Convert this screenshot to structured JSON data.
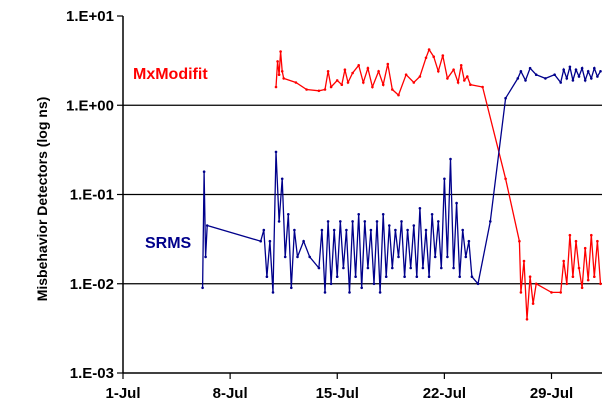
{
  "chart_data": {
    "type": "line",
    "ylabel": "Misbehavior Detectors (log ns)",
    "xlabel": "",
    "y_scale": "log",
    "ylim": [
      0.001,
      10
    ],
    "y_ticks": [
      {
        "value": 10,
        "label": "1.E+01"
      },
      {
        "value": 1,
        "label": "1.E+00"
      },
      {
        "value": 0.1,
        "label": "1.E-01"
      },
      {
        "value": 0.01,
        "label": "1.E-02"
      },
      {
        "value": 0.001,
        "label": "1.E-03"
      }
    ],
    "xlim": [
      1,
      32.3
    ],
    "x_unit": "day of July",
    "x_ticks": [
      {
        "value": 1,
        "label": "1-Jul"
      },
      {
        "value": 8,
        "label": "8-Jul"
      },
      {
        "value": 15,
        "label": "15-Jul"
      },
      {
        "value": 22,
        "label": "22-Jul"
      },
      {
        "value": 29,
        "label": "29-Jul"
      }
    ],
    "gridlines": [
      1,
      0.1,
      0.01
    ],
    "series": [
      {
        "name": "MxModifit",
        "color": "#ff0000",
        "points": [
          [
            11,
            1.6
          ],
          [
            11.1,
            3.1
          ],
          [
            11.2,
            2.2
          ],
          [
            11.3,
            4.0
          ],
          [
            11.4,
            2.4
          ],
          [
            11.5,
            2.0
          ],
          [
            12.3,
            1.8
          ],
          [
            13,
            1.5
          ],
          [
            13.8,
            1.45
          ],
          [
            14.2,
            1.5
          ],
          [
            14.4,
            2.4
          ],
          [
            14.6,
            1.6
          ],
          [
            15,
            1.9
          ],
          [
            15.3,
            1.7
          ],
          [
            15.5,
            2.5
          ],
          [
            15.7,
            1.8
          ],
          [
            16,
            2.3
          ],
          [
            16.4,
            2.8
          ],
          [
            16.7,
            1.8
          ],
          [
            17,
            2.6
          ],
          [
            17.3,
            1.6
          ],
          [
            17.7,
            2.4
          ],
          [
            18,
            1.7
          ],
          [
            18.3,
            2.9
          ],
          [
            18.6,
            1.5
          ],
          [
            19,
            1.3
          ],
          [
            19.5,
            2.2
          ],
          [
            20,
            1.8
          ],
          [
            20.4,
            2.1
          ],
          [
            20.8,
            3.4
          ],
          [
            21,
            4.2
          ],
          [
            21.3,
            3.5
          ],
          [
            21.6,
            2.4
          ],
          [
            21.9,
            3.6
          ],
          [
            22.2,
            2.0
          ],
          [
            22.6,
            2.5
          ],
          [
            22.9,
            1.8
          ],
          [
            23.1,
            2.8
          ],
          [
            23.3,
            1.9
          ],
          [
            23.5,
            2.1
          ],
          [
            23.7,
            1.7
          ],
          [
            24.5,
            1.6
          ],
          [
            26,
            0.15
          ],
          [
            26.9,
            0.03
          ],
          [
            27,
            0.008
          ],
          [
            27.2,
            0.018
          ],
          [
            27.4,
            0.004
          ],
          [
            27.6,
            0.012
          ],
          [
            27.8,
            0.006
          ],
          [
            28,
            0.01
          ],
          [
            29,
            0.008
          ],
          [
            29.6,
            0.008
          ],
          [
            29.8,
            0.018
          ],
          [
            30,
            0.01
          ],
          [
            30.2,
            0.035
          ],
          [
            30.4,
            0.012
          ],
          [
            30.6,
            0.03
          ],
          [
            30.8,
            0.015
          ],
          [
            31,
            0.009
          ],
          [
            31.2,
            0.025
          ],
          [
            31.4,
            0.011
          ],
          [
            31.6,
            0.035
          ],
          [
            31.8,
            0.012
          ],
          [
            32,
            0.03
          ],
          [
            32.2,
            0.01
          ]
        ]
      },
      {
        "name": "SRMS",
        "color": "#00008b",
        "points": [
          [
            6.2,
            0.009
          ],
          [
            6.3,
            0.18
          ],
          [
            6.4,
            0.02
          ],
          [
            6.5,
            0.045
          ],
          [
            10,
            0.03
          ],
          [
            10.2,
            0.04
          ],
          [
            10.4,
            0.012
          ],
          [
            10.6,
            0.03
          ],
          [
            10.8,
            0.008
          ],
          [
            11.0,
            0.3
          ],
          [
            11.2,
            0.05
          ],
          [
            11.4,
            0.15
          ],
          [
            11.6,
            0.02
          ],
          [
            11.8,
            0.06
          ],
          [
            12,
            0.009
          ],
          [
            12.2,
            0.04
          ],
          [
            12.4,
            0.02
          ],
          [
            12.8,
            0.03
          ],
          [
            13.2,
            0.02
          ],
          [
            13.8,
            0.015
          ],
          [
            14,
            0.04
          ],
          [
            14.2,
            0.008
          ],
          [
            14.4,
            0.05
          ],
          [
            14.6,
            0.01
          ],
          [
            14.8,
            0.04
          ],
          [
            15,
            0.012
          ],
          [
            15.2,
            0.05
          ],
          [
            15.4,
            0.015
          ],
          [
            15.6,
            0.04
          ],
          [
            15.8,
            0.008
          ],
          [
            16,
            0.05
          ],
          [
            16.2,
            0.012
          ],
          [
            16.4,
            0.06
          ],
          [
            16.6,
            0.009
          ],
          [
            16.8,
            0.05
          ],
          [
            17,
            0.015
          ],
          [
            17.2,
            0.04
          ],
          [
            17.4,
            0.01
          ],
          [
            17.6,
            0.05
          ],
          [
            17.8,
            0.008
          ],
          [
            18,
            0.06
          ],
          [
            18.2,
            0.012
          ],
          [
            18.4,
            0.045
          ],
          [
            18.6,
            0.015
          ],
          [
            18.8,
            0.04
          ],
          [
            19,
            0.02
          ],
          [
            19.2,
            0.05
          ],
          [
            19.4,
            0.012
          ],
          [
            19.6,
            0.04
          ],
          [
            19.8,
            0.015
          ],
          [
            20,
            0.045
          ],
          [
            20.2,
            0.012
          ],
          [
            20.4,
            0.07
          ],
          [
            20.6,
            0.015
          ],
          [
            20.8,
            0.04
          ],
          [
            21,
            0.012
          ],
          [
            21.2,
            0.06
          ],
          [
            21.4,
            0.02
          ],
          [
            21.6,
            0.05
          ],
          [
            21.8,
            0.015
          ],
          [
            22,
            0.15
          ],
          [
            22.2,
            0.02
          ],
          [
            22.4,
            0.25
          ],
          [
            22.6,
            0.015
          ],
          [
            22.8,
            0.08
          ],
          [
            23,
            0.012
          ],
          [
            23.2,
            0.04
          ],
          [
            23.4,
            0.02
          ],
          [
            23.6,
            0.03
          ],
          [
            23.8,
            0.012
          ],
          [
            24.2,
            0.01
          ],
          [
            25,
            0.05
          ],
          [
            26,
            1.2
          ],
          [
            26.8,
            2.0
          ],
          [
            27,
            2.4
          ],
          [
            27.3,
            1.9
          ],
          [
            27.6,
            2.6
          ],
          [
            28,
            2.2
          ],
          [
            28.6,
            2.0
          ],
          [
            29.2,
            2.2
          ],
          [
            29.6,
            1.8
          ],
          [
            29.8,
            2.5
          ],
          [
            30,
            2.0
          ],
          [
            30.2,
            2.7
          ],
          [
            30.4,
            1.9
          ],
          [
            30.6,
            2.5
          ],
          [
            30.8,
            2.1
          ],
          [
            31,
            2.6
          ],
          [
            31.2,
            1.9
          ],
          [
            31.4,
            2.4
          ],
          [
            31.6,
            2.0
          ],
          [
            31.8,
            2.6
          ],
          [
            32,
            2.1
          ],
          [
            32.2,
            2.4
          ]
        ]
      }
    ],
    "series_labels": [
      {
        "text": "MxModifit",
        "color": "#ff0000"
      },
      {
        "text": "SRMS",
        "color": "#00008b"
      }
    ]
  }
}
